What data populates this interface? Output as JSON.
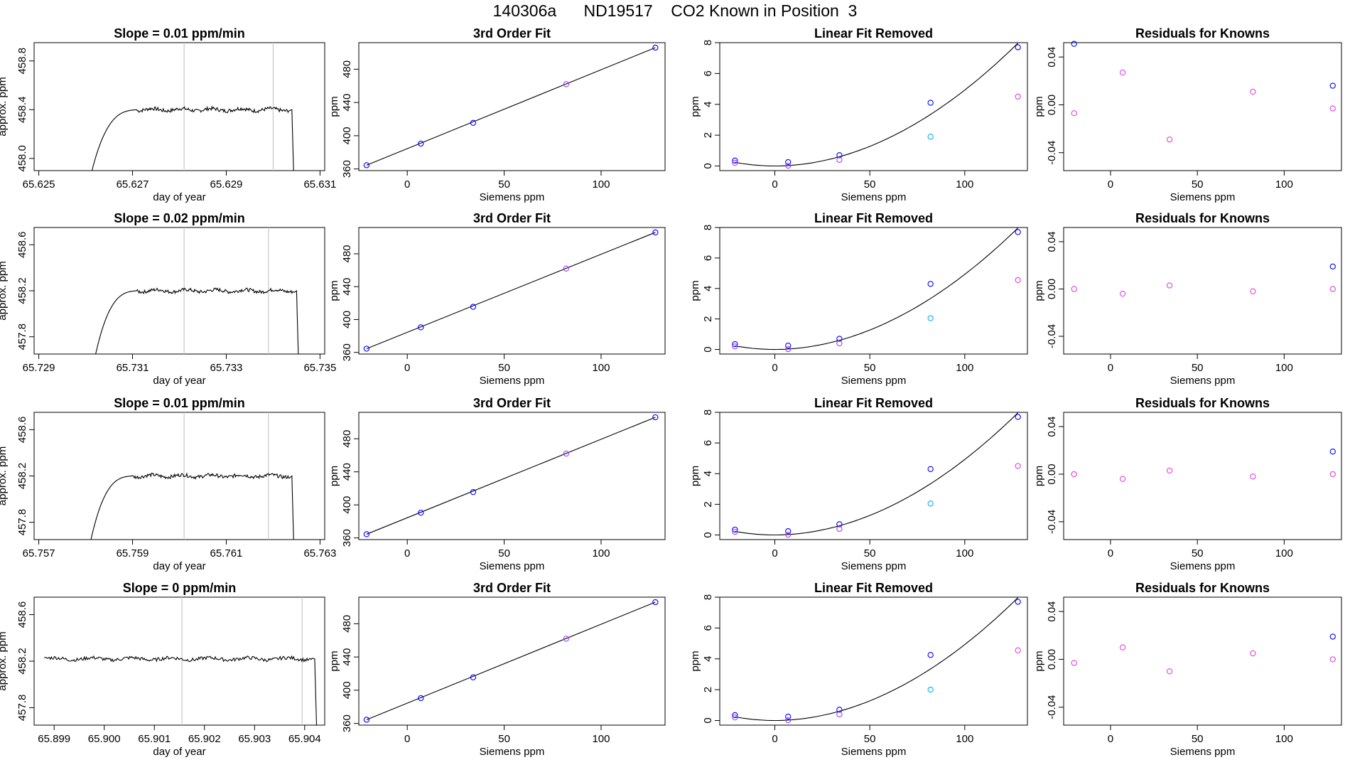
{
  "figure": {
    "title": "140306a      ND19517    CO2 Known in Position  3"
  },
  "colors": {
    "line": "#000000",
    "window_line": "#c8c8c8",
    "blue": "#0000ff",
    "violet": "#a040ff",
    "magenta": "#e040e0",
    "cyan": "#00b0f0",
    "red": "#ff0000"
  },
  "chart_data": [
    {
      "type": "line",
      "row": 0,
      "col": 0,
      "title": "Slope =  0.01  ppm/min",
      "xlabel": "day of year",
      "ylabel": "approx. ppm",
      "xlim": [
        65.6249,
        65.6311
      ],
      "ylim": [
        457.9,
        458.95
      ],
      "xticks": [
        65.625,
        65.627,
        65.629,
        65.631
      ],
      "xtick_labels": [
        "65.625",
        "65.627",
        "65.629",
        "65.631"
      ],
      "yticks": [
        458.0,
        458.4,
        458.8
      ],
      "ytick_labels": [
        "458.0",
        "458.4",
        "458.8"
      ],
      "window_lines": [
        65.6281,
        65.63
      ],
      "trace": {
        "start": 65.626,
        "end": 65.63035,
        "rise_end": 65.6271,
        "plateau": 458.4,
        "baseline": 457.7,
        "drop": 457.7
      }
    },
    {
      "type": "line",
      "row": 1,
      "col": 0,
      "title": "Slope =  0.02  ppm/min",
      "xlabel": "day of year",
      "ylabel": "approx. ppm",
      "xlim": [
        65.7289,
        65.7351
      ],
      "ylim": [
        457.65,
        458.75
      ],
      "xticks": [
        65.729,
        65.731,
        65.733,
        65.735
      ],
      "xtick_labels": [
        "65.729",
        "65.731",
        "65.733",
        "65.735"
      ],
      "yticks": [
        457.8,
        458.2,
        458.6
      ],
      "ytick_labels": [
        "457.8",
        "458.2",
        "458.6"
      ],
      "window_lines": [
        65.7321,
        65.7339
      ],
      "trace": {
        "start": 65.7301,
        "end": 65.73445,
        "rise_end": 65.7311,
        "plateau": 458.2,
        "baseline": 457.45,
        "drop": 457.45
      }
    },
    {
      "type": "line",
      "row": 2,
      "col": 0,
      "title": "Slope =  0.01  ppm/min",
      "xlabel": "day of year",
      "ylabel": "approx. ppm",
      "xlim": [
        65.7569,
        65.7631
      ],
      "ylim": [
        457.65,
        458.75
      ],
      "xticks": [
        65.757,
        65.759,
        65.761,
        65.763
      ],
      "xtick_labels": [
        "65.757",
        "65.759",
        "65.761",
        "65.763"
      ],
      "yticks": [
        457.8,
        458.2,
        458.6
      ],
      "ytick_labels": [
        "457.8",
        "458.2",
        "458.6"
      ],
      "window_lines": [
        65.7601,
        65.7619
      ],
      "trace": {
        "start": 65.758,
        "end": 65.76235,
        "rise_end": 65.759,
        "plateau": 458.2,
        "baseline": 457.45,
        "drop": 457.45
      }
    },
    {
      "type": "line",
      "row": 3,
      "col": 0,
      "title": "Slope =  0  ppm/min",
      "xlabel": "day of year",
      "ylabel": "approx. ppm",
      "xlim": [
        65.8986,
        65.9044
      ],
      "ylim": [
        457.65,
        458.75
      ],
      "xticks": [
        65.899,
        65.9,
        65.901,
        65.902,
        65.903,
        65.904
      ],
      "xtick_labels": [
        "65.899",
        "65.900",
        "65.901",
        "65.902",
        "65.903",
        "65.904"
      ],
      "yticks": [
        457.8,
        458.2,
        458.6
      ],
      "ytick_labels": [
        "457.8",
        "458.2",
        "458.6"
      ],
      "window_lines": [
        65.90155,
        65.90395
      ],
      "trace": {
        "start": 65.8988,
        "end": 65.90415,
        "rise_end": 65.8988,
        "plateau": 458.22,
        "baseline": 458.22,
        "drop": 457.45
      }
    },
    {
      "type": "scatter",
      "row": 0,
      "col": 1,
      "title": "3rd Order Fit",
      "xlabel": "Siemens ppm",
      "ylabel": "ppm",
      "xlim": [
        -25,
        133
      ],
      "ylim": [
        358,
        512
      ],
      "xticks": [
        0,
        50,
        100
      ],
      "xtick_labels": [
        "0",
        "50",
        "100"
      ],
      "yticks": [
        360,
        400,
        440,
        480
      ],
      "ytick_labels": [
        "360",
        "400",
        "440",
        "480"
      ],
      "fit": {
        "kind": "line",
        "x0": -21,
        "y0": 364.5,
        "x1": 128,
        "y1": 506
      },
      "points": [
        {
          "x": -21,
          "y": 364.5,
          "c": "blue"
        },
        {
          "x": 7,
          "y": 390.5,
          "c": "blue"
        },
        {
          "x": 34,
          "y": 415.5,
          "c": "blue"
        },
        {
          "x": 82,
          "y": 462,
          "c": "violet"
        },
        {
          "x": 128,
          "y": 506,
          "c": "blue"
        }
      ]
    },
    {
      "type": "scatter",
      "row": 1,
      "col": 1,
      "title": "3rd Order Fit",
      "xlabel": "Siemens ppm",
      "ylabel": "ppm",
      "xlim": [
        -25,
        133
      ],
      "ylim": [
        358,
        512
      ],
      "xticks": [
        0,
        50,
        100
      ],
      "xtick_labels": [
        "0",
        "50",
        "100"
      ],
      "yticks": [
        360,
        400,
        440,
        480
      ],
      "ytick_labels": [
        "360",
        "400",
        "440",
        "480"
      ],
      "fit": {
        "kind": "line",
        "x0": -21,
        "y0": 364.5,
        "x1": 128,
        "y1": 506
      },
      "points": [
        {
          "x": -21,
          "y": 364.5,
          "c": "blue"
        },
        {
          "x": 7,
          "y": 390.5,
          "c": "blue"
        },
        {
          "x": 34,
          "y": 415.5,
          "c": "blue"
        },
        {
          "x": 82,
          "y": 462,
          "c": "violet"
        },
        {
          "x": 128,
          "y": 506,
          "c": "blue"
        }
      ]
    },
    {
      "type": "scatter",
      "row": 2,
      "col": 1,
      "title": "3rd Order Fit",
      "xlabel": "Siemens ppm",
      "ylabel": "ppm",
      "xlim": [
        -25,
        133
      ],
      "ylim": [
        358,
        512
      ],
      "xticks": [
        0,
        50,
        100
      ],
      "xtick_labels": [
        "0",
        "50",
        "100"
      ],
      "yticks": [
        360,
        400,
        440,
        480
      ],
      "ytick_labels": [
        "360",
        "400",
        "440",
        "480"
      ],
      "fit": {
        "kind": "line",
        "x0": -21,
        "y0": 364.5,
        "x1": 128,
        "y1": 506
      },
      "points": [
        {
          "x": -21,
          "y": 364.5,
          "c": "blue"
        },
        {
          "x": 7,
          "y": 390.5,
          "c": "blue"
        },
        {
          "x": 34,
          "y": 415.5,
          "c": "blue"
        },
        {
          "x": 82,
          "y": 462,
          "c": "violet"
        },
        {
          "x": 128,
          "y": 506,
          "c": "blue"
        }
      ]
    },
    {
      "type": "scatter",
      "row": 3,
      "col": 1,
      "title": "3rd Order Fit",
      "xlabel": "Siemens ppm",
      "ylabel": "ppm",
      "xlim": [
        -25,
        133
      ],
      "ylim": [
        358,
        512
      ],
      "xticks": [
        0,
        50,
        100
      ],
      "xtick_labels": [
        "0",
        "50",
        "100"
      ],
      "yticks": [
        360,
        400,
        440,
        480
      ],
      "ytick_labels": [
        "360",
        "400",
        "440",
        "480"
      ],
      "fit": {
        "kind": "line",
        "x0": -21,
        "y0": 364.5,
        "x1": 128,
        "y1": 506
      },
      "points": [
        {
          "x": -21,
          "y": 364.5,
          "c": "blue"
        },
        {
          "x": 7,
          "y": 390.5,
          "c": "blue"
        },
        {
          "x": 34,
          "y": 415.5,
          "c": "blue"
        },
        {
          "x": 82,
          "y": 462,
          "c": "violet"
        },
        {
          "x": 128,
          "y": 506,
          "c": "blue"
        }
      ]
    },
    {
      "type": "scatter",
      "row": 0,
      "col": 2,
      "title": "Linear Fit Removed",
      "xlabel": "Siemens ppm",
      "ylabel": "ppm",
      "xlim": [
        -29,
        133
      ],
      "ylim": [
        -0.3,
        8.0
      ],
      "xticks": [
        0,
        50,
        100
      ],
      "xtick_labels": [
        "0",
        "50",
        "100"
      ],
      "yticks": [
        0,
        2,
        4,
        6,
        8
      ],
      "ytick_labels": [
        "0",
        "2",
        "4",
        "6",
        "8"
      ],
      "fit": {
        "kind": "cubic",
        "x0": 0,
        "coef": 0.00062,
        "p": 1.95,
        "xmin": -21,
        "xmax": 128
      },
      "points": [
        {
          "x": -21,
          "y": 0.35,
          "c": "blue"
        },
        {
          "x": -21,
          "y": 0.2,
          "c": "violet"
        },
        {
          "x": 7,
          "y": 0.25,
          "c": "blue"
        },
        {
          "x": 7,
          "y": 0.02,
          "c": "violet"
        },
        {
          "x": 34,
          "y": 0.7,
          "c": "blue"
        },
        {
          "x": 34,
          "y": 0.4,
          "c": "violet"
        },
        {
          "x": 82,
          "y": 4.1,
          "c": "blue"
        },
        {
          "x": 82,
          "y": 1.9,
          "c": "cyan"
        },
        {
          "x": 128,
          "y": 7.7,
          "c": "blue"
        },
        {
          "x": 128,
          "y": 4.5,
          "c": "magenta"
        }
      ]
    },
    {
      "type": "scatter",
      "row": 1,
      "col": 2,
      "title": "Linear Fit Removed",
      "xlabel": "Siemens ppm",
      "ylabel": "ppm",
      "xlim": [
        -29,
        133
      ],
      "ylim": [
        -0.3,
        8.0
      ],
      "xticks": [
        0,
        50,
        100
      ],
      "xtick_labels": [
        "0",
        "50",
        "100"
      ],
      "yticks": [
        0,
        2,
        4,
        6,
        8
      ],
      "ytick_labels": [
        "0",
        "2",
        "4",
        "6",
        "8"
      ],
      "fit": {
        "kind": "cubic",
        "x0": 0,
        "coef": 0.00062,
        "p": 1.95,
        "xmin": -21,
        "xmax": 128
      },
      "points": [
        {
          "x": -21,
          "y": 0.35,
          "c": "blue"
        },
        {
          "x": -21,
          "y": 0.2,
          "c": "violet"
        },
        {
          "x": 7,
          "y": 0.25,
          "c": "blue"
        },
        {
          "x": 7,
          "y": 0.02,
          "c": "violet"
        },
        {
          "x": 34,
          "y": 0.7,
          "c": "blue"
        },
        {
          "x": 34,
          "y": 0.4,
          "c": "violet"
        },
        {
          "x": 82,
          "y": 4.3,
          "c": "blue"
        },
        {
          "x": 82,
          "y": 2.05,
          "c": "cyan"
        },
        {
          "x": 128,
          "y": 7.7,
          "c": "blue"
        },
        {
          "x": 128,
          "y": 4.55,
          "c": "magenta"
        }
      ]
    },
    {
      "type": "scatter",
      "row": 2,
      "col": 2,
      "title": "Linear Fit Removed",
      "xlabel": "Siemens ppm",
      "ylabel": "ppm",
      "xlim": [
        -29,
        133
      ],
      "ylim": [
        -0.3,
        8.0
      ],
      "xticks": [
        0,
        50,
        100
      ],
      "xtick_labels": [
        "0",
        "50",
        "100"
      ],
      "yticks": [
        0,
        2,
        4,
        6,
        8
      ],
      "ytick_labels": [
        "0",
        "2",
        "4",
        "6",
        "8"
      ],
      "fit": {
        "kind": "cubic",
        "x0": 0,
        "coef": 0.00062,
        "p": 1.95,
        "xmin": -21,
        "xmax": 128
      },
      "points": [
        {
          "x": -21,
          "y": 0.35,
          "c": "blue"
        },
        {
          "x": -21,
          "y": 0.2,
          "c": "violet"
        },
        {
          "x": 7,
          "y": 0.25,
          "c": "blue"
        },
        {
          "x": 7,
          "y": 0.02,
          "c": "violet"
        },
        {
          "x": 34,
          "y": 0.7,
          "c": "blue"
        },
        {
          "x": 34,
          "y": 0.4,
          "c": "violet"
        },
        {
          "x": 82,
          "y": 4.3,
          "c": "blue"
        },
        {
          "x": 82,
          "y": 2.05,
          "c": "cyan"
        },
        {
          "x": 128,
          "y": 7.7,
          "c": "blue"
        },
        {
          "x": 128,
          "y": 4.5,
          "c": "magenta"
        }
      ]
    },
    {
      "type": "scatter",
      "row": 3,
      "col": 2,
      "title": "Linear Fit Removed",
      "xlabel": "Siemens ppm",
      "ylabel": "ppm",
      "xlim": [
        -29,
        133
      ],
      "ylim": [
        -0.3,
        8.0
      ],
      "xticks": [
        0,
        50,
        100
      ],
      "xtick_labels": [
        "0",
        "50",
        "100"
      ],
      "yticks": [
        0,
        2,
        4,
        6,
        8
      ],
      "ytick_labels": [
        "0",
        "2",
        "4",
        "6",
        "8"
      ],
      "fit": {
        "kind": "cubic",
        "x0": 0,
        "coef": 0.00062,
        "p": 1.95,
        "xmin": -21,
        "xmax": 128
      },
      "points": [
        {
          "x": -21,
          "y": 0.35,
          "c": "blue"
        },
        {
          "x": -21,
          "y": 0.2,
          "c": "violet"
        },
        {
          "x": 7,
          "y": 0.25,
          "c": "blue"
        },
        {
          "x": 7,
          "y": 0.02,
          "c": "violet"
        },
        {
          "x": 34,
          "y": 0.7,
          "c": "blue"
        },
        {
          "x": 34,
          "y": 0.4,
          "c": "violet"
        },
        {
          "x": 82,
          "y": 4.25,
          "c": "blue"
        },
        {
          "x": 82,
          "y": 2.0,
          "c": "cyan"
        },
        {
          "x": 128,
          "y": 7.7,
          "c": "blue"
        },
        {
          "x": 128,
          "y": 4.55,
          "c": "magenta"
        }
      ]
    },
    {
      "type": "scatter",
      "row": 0,
      "col": 3,
      "title": "Residuals for Knowns",
      "xlabel": "Siemens ppm",
      "ylabel": "ppm",
      "xlim": [
        -27,
        133
      ],
      "ylim": [
        -0.055,
        0.052
      ],
      "xticks": [
        0,
        50,
        100
      ],
      "xtick_labels": [
        "0",
        "50",
        "100"
      ],
      "yticks": [
        -0.04,
        0.0,
        0.04
      ],
      "ytick_labels": [
        "-0.04",
        "0.00",
        "0.04"
      ],
      "points": [
        {
          "x": -21,
          "y": 0.051,
          "c": "blue"
        },
        {
          "x": -21,
          "y": -0.007,
          "c": "magenta"
        },
        {
          "x": 7,
          "y": 0.027,
          "c": "magenta"
        },
        {
          "x": 34,
          "y": -0.029,
          "c": "magenta"
        },
        {
          "x": 82,
          "y": 0.011,
          "c": "magenta"
        },
        {
          "x": 128,
          "y": 0.016,
          "c": "blue"
        },
        {
          "x": 128,
          "y": -0.003,
          "c": "magenta"
        }
      ]
    },
    {
      "type": "scatter",
      "row": 1,
      "col": 3,
      "title": "Residuals for Knowns",
      "xlabel": "Siemens ppm",
      "ylabel": "ppm",
      "xlim": [
        -27,
        133
      ],
      "ylim": [
        -0.055,
        0.052
      ],
      "xticks": [
        0,
        50,
        100
      ],
      "xtick_labels": [
        "0",
        "50",
        "100"
      ],
      "yticks": [
        -0.04,
        0.0,
        0.04
      ],
      "ytick_labels": [
        "-0.04",
        "0.00",
        "0.04"
      ],
      "points": [
        {
          "x": -21,
          "y": 0.0,
          "c": "magenta"
        },
        {
          "x": 7,
          "y": -0.004,
          "c": "magenta"
        },
        {
          "x": 34,
          "y": 0.003,
          "c": "magenta"
        },
        {
          "x": 82,
          "y": -0.002,
          "c": "magenta"
        },
        {
          "x": 128,
          "y": 0.019,
          "c": "blue"
        },
        {
          "x": 128,
          "y": 0.0,
          "c": "magenta"
        }
      ]
    },
    {
      "type": "scatter",
      "row": 2,
      "col": 3,
      "title": "Residuals for Knowns",
      "xlabel": "Siemens ppm",
      "ylabel": "ppm",
      "xlim": [
        -27,
        133
      ],
      "ylim": [
        -0.055,
        0.052
      ],
      "xticks": [
        0,
        50,
        100
      ],
      "xtick_labels": [
        "0",
        "50",
        "100"
      ],
      "yticks": [
        -0.04,
        0.0,
        0.04
      ],
      "ytick_labels": [
        "-0.04",
        "0.00",
        "0.04"
      ],
      "points": [
        {
          "x": -21,
          "y": 0.0,
          "c": "magenta"
        },
        {
          "x": 7,
          "y": -0.004,
          "c": "magenta"
        },
        {
          "x": 34,
          "y": 0.003,
          "c": "magenta"
        },
        {
          "x": 82,
          "y": -0.002,
          "c": "magenta"
        },
        {
          "x": 128,
          "y": 0.019,
          "c": "blue"
        },
        {
          "x": 128,
          "y": 0.0,
          "c": "magenta"
        }
      ]
    },
    {
      "type": "scatter",
      "row": 3,
      "col": 3,
      "title": "Residuals for Knowns",
      "xlabel": "Siemens ppm",
      "ylabel": "ppm",
      "xlim": [
        -27,
        133
      ],
      "ylim": [
        -0.055,
        0.052
      ],
      "xticks": [
        0,
        50,
        100
      ],
      "xtick_labels": [
        "0",
        "50",
        "100"
      ],
      "yticks": [
        -0.04,
        0.0,
        0.04
      ],
      "ytick_labels": [
        "-0.04",
        "0.00",
        "0.04"
      ],
      "points": [
        {
          "x": -21,
          "y": -0.003,
          "c": "magenta"
        },
        {
          "x": 7,
          "y": 0.01,
          "c": "magenta"
        },
        {
          "x": 34,
          "y": -0.01,
          "c": "magenta"
        },
        {
          "x": 82,
          "y": 0.005,
          "c": "magenta"
        },
        {
          "x": 128,
          "y": 0.019,
          "c": "blue"
        },
        {
          "x": 128,
          "y": 0.0,
          "c": "magenta"
        }
      ]
    }
  ]
}
